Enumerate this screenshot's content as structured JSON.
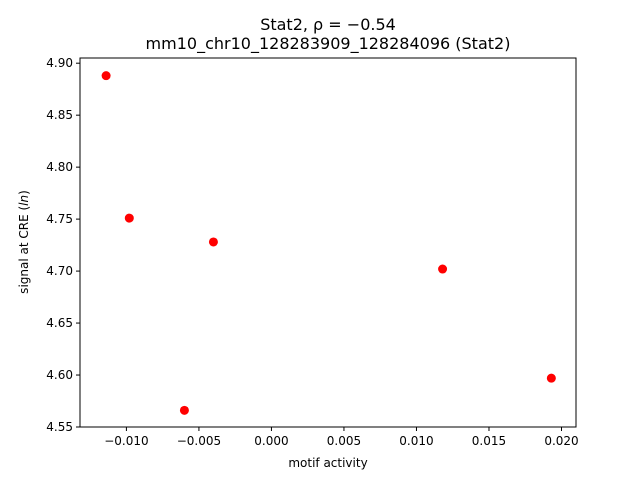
{
  "chart_data": {
    "type": "scatter",
    "title_line1": "Stat2, ρ = −0.54",
    "title_line2": "mm10_chr10_128283909_128284096 (Stat2)",
    "xlabel": "motif activity",
    "ylabel_main": "signal at CRE (",
    "ylabel_italic": "ln",
    "ylabel_end": ")",
    "xlim": [
      -0.0132,
      0.021
    ],
    "ylim": [
      4.55,
      4.905
    ],
    "xticks": [
      -0.01,
      -0.005,
      0.0,
      0.005,
      0.01,
      0.015,
      0.02
    ],
    "xtick_labels": [
      "−0.010",
      "−0.005",
      "0.000",
      "0.005",
      "0.010",
      "0.015",
      "0.020"
    ],
    "yticks": [
      4.55,
      4.6,
      4.65,
      4.7,
      4.75,
      4.8,
      4.85,
      4.9
    ],
    "ytick_labels": [
      "4.55",
      "4.60",
      "4.65",
      "4.70",
      "4.75",
      "4.80",
      "4.85",
      "4.90"
    ],
    "points": [
      {
        "x": -0.0114,
        "y": 4.888
      },
      {
        "x": -0.0098,
        "y": 4.751
      },
      {
        "x": -0.006,
        "y": 4.566
      },
      {
        "x": -0.004,
        "y": 4.728
      },
      {
        "x": 0.0118,
        "y": 4.702
      },
      {
        "x": 0.0193,
        "y": 4.597
      }
    ],
    "marker_color": "#ff0000",
    "grid": false,
    "legend": "none"
  }
}
